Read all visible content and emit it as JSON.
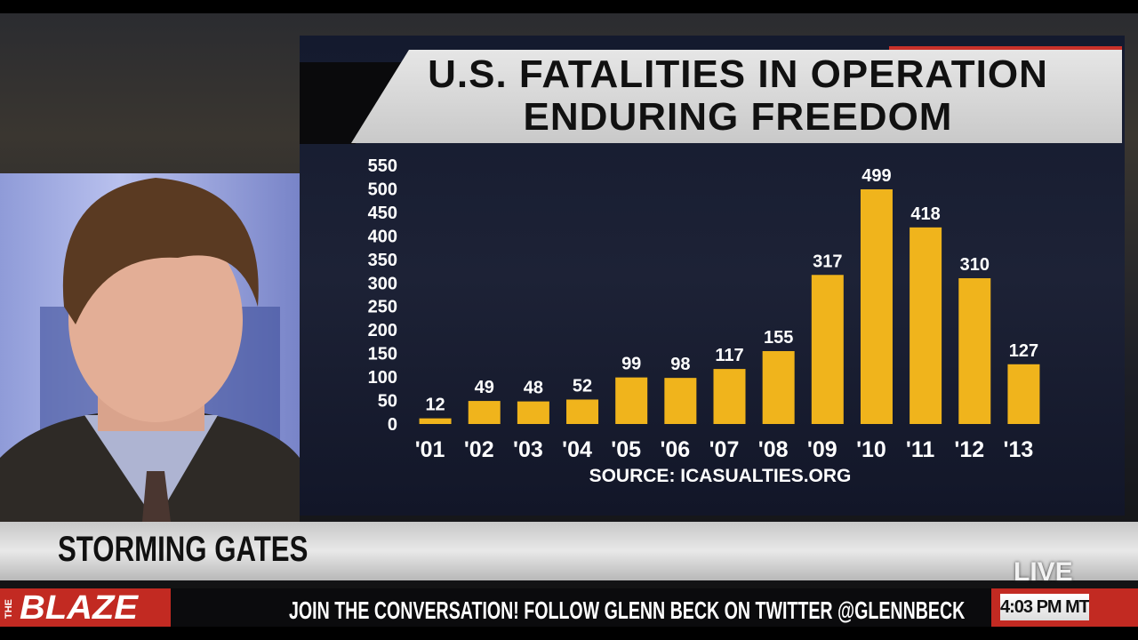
{
  "chart_data": {
    "type": "bar",
    "title": "U.S. FATALITIES IN OPERATION ENDURING FREEDOM",
    "source": "SOURCE: ICASUALTIES.ORG",
    "categories": [
      "'01",
      "'02",
      "'03",
      "'04",
      "'05",
      "'06",
      "'07",
      "'08",
      "'09",
      "'10",
      "'11",
      "'12",
      "'13"
    ],
    "values": [
      12,
      49,
      48,
      52,
      99,
      98,
      117,
      155,
      317,
      499,
      418,
      310,
      127
    ],
    "color": "#f0b41c",
    "ylim": [
      0,
      550
    ],
    "yticks": [
      0,
      50,
      100,
      150,
      200,
      250,
      300,
      350,
      400,
      450,
      500,
      550
    ],
    "grid": false
  },
  "lower_third": {
    "headline": "STORMING GATES",
    "status": "LIVE"
  },
  "ticker": {
    "logo_prefix": "THE",
    "logo": "BLAZE",
    "text": "JOIN THE CONVERSATION! FOLLOW GLENN BECK ON TWITTER @GLENNBECK",
    "time": "4:03 PM MT"
  }
}
